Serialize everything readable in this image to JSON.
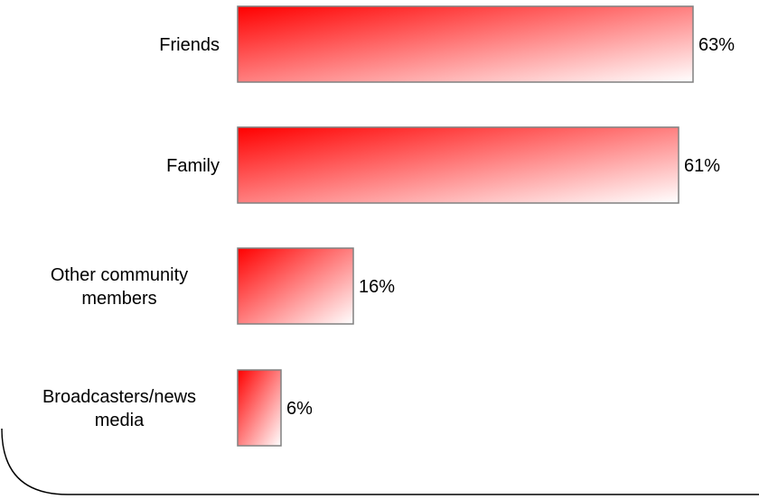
{
  "chart_data": {
    "type": "bar",
    "orientation": "horizontal",
    "categories": [
      "Friends",
      "Family",
      "Other community members",
      "Broadcasters/news media"
    ],
    "category_lines": [
      [
        "Friends"
      ],
      [
        "Family"
      ],
      [
        "Other community",
        "members"
      ],
      [
        "Broadcasters/news",
        "media"
      ]
    ],
    "values": [
      63,
      61,
      16,
      6
    ],
    "value_labels": [
      "63%",
      "61%",
      "16%",
      "6%"
    ],
    "unit": "%",
    "xlim": [
      0,
      63
    ],
    "grid": false,
    "legend": "none",
    "colors": {
      "bar_start": "#ff0000",
      "bar_end": "#ffffff",
      "bar_border": "#808080"
    }
  }
}
